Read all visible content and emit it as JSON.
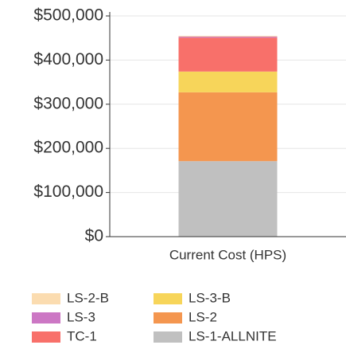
{
  "chart_data": {
    "type": "bar",
    "categories": [
      "Current Cost (HPS)"
    ],
    "series": [
      {
        "name": "LS-1-ALLNITE",
        "color": "#c0c0c0",
        "values": [
          171000
        ]
      },
      {
        "name": "LS-2",
        "color": "#f4964f",
        "values": [
          156000
        ]
      },
      {
        "name": "LS-3-B",
        "color": "#f7d55a",
        "values": [
          47000
        ]
      },
      {
        "name": "TC-1",
        "color": "#f8706a",
        "values": [
          77000
        ]
      },
      {
        "name": "LS-3",
        "color": "#cc77c4",
        "values": [
          2000
        ]
      },
      {
        "name": "LS-2-B",
        "color": "#fbdcb0",
        "values": [
          2000
        ]
      }
    ],
    "stacked": true,
    "ylim": [
      0,
      500000
    ],
    "yticks": [
      {
        "value": 0,
        "label": "$0"
      },
      {
        "value": 100000,
        "label": "$100,000"
      },
      {
        "value": 200000,
        "label": "$200,000"
      },
      {
        "value": 300000,
        "label": "$300,000"
      },
      {
        "value": 400000,
        "label": "$400,000"
      },
      {
        "value": 500000,
        "label": "$500,000"
      }
    ],
    "grid": true,
    "legend": "bottom"
  }
}
